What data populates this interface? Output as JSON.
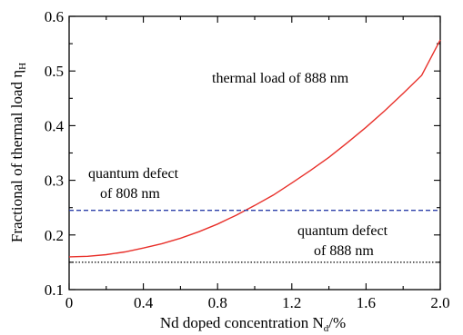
{
  "chart_data": {
    "type": "line",
    "xlabel": "Nd doped concentration N",
    "xlabel_sub": "d",
    "xlabel_unit": "/%",
    "ylabel": "Fractional of thermal load η",
    "ylabel_sub": "H",
    "xlim": [
      0,
      2.0
    ],
    "ylim": [
      0.1,
      0.6
    ],
    "x_ticks": [
      "0",
      "0.4",
      "0.8",
      "1.2",
      "1.6",
      "2.0"
    ],
    "y_ticks": [
      "0.1",
      "0.2",
      "0.3",
      "0.4",
      "0.5",
      "0.6"
    ],
    "series": [
      {
        "name": "thermal load of 888 nm",
        "style": "solid",
        "color": "#e8302a",
        "x": [
          0,
          0.1,
          0.2,
          0.3,
          0.4,
          0.5,
          0.6,
          0.7,
          0.8,
          0.9,
          1.0,
          1.1,
          1.2,
          1.3,
          1.4,
          1.5,
          1.6,
          1.7,
          1.8,
          1.9,
          2.0
        ],
        "y": [
          0.16,
          0.161,
          0.164,
          0.169,
          0.176,
          0.184,
          0.194,
          0.206,
          0.22,
          0.236,
          0.254,
          0.273,
          0.295,
          0.318,
          0.342,
          0.369,
          0.397,
          0.427,
          0.459,
          0.492,
          0.557
        ]
      },
      {
        "name": "quantum defect of 808 nm",
        "style": "dashed",
        "color": "#2b3fa8",
        "x": [
          0,
          2.0
        ],
        "y": [
          0.245,
          0.245
        ]
      },
      {
        "name": "quantum defect of 888 nm",
        "style": "dotted",
        "color": "#000000",
        "x": [
          0,
          2.0
        ],
        "y": [
          0.15,
          0.15
        ]
      }
    ],
    "annotations": {
      "thermal_888": "thermal load of 888 nm",
      "qd808_line1": "quantum defect",
      "qd808_line2": "of 808 nm",
      "qd888_line1": "quantum defect",
      "qd888_line2": "of 888 nm"
    },
    "grid": false,
    "legend": "none"
  }
}
